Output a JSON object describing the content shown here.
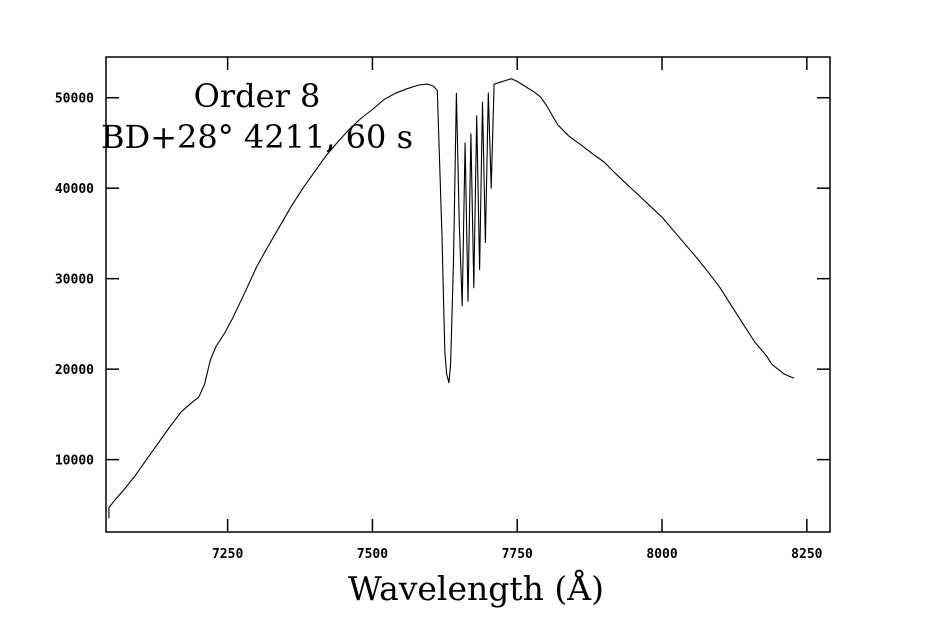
{
  "chart_data": {
    "type": "line",
    "title": "",
    "xlabel": "Wavelength (Å)",
    "ylabel": "",
    "xlim": [
      7040,
      8290
    ],
    "ylim": [
      2000,
      54500
    ],
    "x_ticks": [
      7250,
      7500,
      7750,
      8000,
      8250
    ],
    "y_ticks": [
      10000,
      20000,
      30000,
      40000,
      50000
    ],
    "grid": false,
    "annotations": [
      "Order 8",
      "BD+28° 4211, 60 s"
    ],
    "series": [
      {
        "x": [
          7045,
          7045,
          7055,
          7070,
          7090,
          7110,
          7130,
          7150,
          7170,
          7190,
          7200,
          7210,
          7220,
          7230,
          7245,
          7260,
          7280,
          7300,
          7320,
          7340,
          7360,
          7380,
          7400,
          7420,
          7440,
          7460,
          7480,
          7500,
          7520,
          7540,
          7560,
          7580,
          7595,
          7605,
          7612,
          7620,
          7625,
          7628,
          7632,
          7635,
          7640,
          7645,
          7650,
          7655,
          7660,
          7665,
          7670,
          7675,
          7680,
          7685,
          7690,
          7695,
          7700,
          7705,
          7710,
          7720,
          7730,
          7740,
          7750,
          7760,
          7770,
          7780,
          7790,
          7800,
          7820,
          7840,
          7860,
          7880,
          7900,
          7920,
          7940,
          7960,
          7980,
          8000,
          8020,
          8040,
          8060,
          8080,
          8100,
          8120,
          8140,
          8160,
          8180,
          8190,
          8200,
          8210,
          8220,
          8228
        ],
        "y": [
          3500,
          4700,
          5500,
          6600,
          8200,
          10000,
          11800,
          13600,
          15300,
          16400,
          16900,
          18300,
          21000,
          22500,
          24000,
          25800,
          28500,
          31300,
          33600,
          35800,
          38000,
          40000,
          41800,
          43600,
          45100,
          46500,
          47700,
          48700,
          49800,
          50500,
          51000,
          51400,
          51500,
          51300,
          50800,
          35000,
          22000,
          19500,
          18500,
          20500,
          32000,
          50500,
          36000,
          27000,
          45000,
          27500,
          46000,
          29000,
          48000,
          31000,
          49500,
          34000,
          50500,
          40000,
          51500,
          51700,
          51900,
          52100,
          51800,
          51400,
          51000,
          50600,
          50100,
          49200,
          47000,
          45700,
          44800,
          43800,
          42900,
          41600,
          40400,
          39200,
          38000,
          36800,
          35300,
          33800,
          32300,
          30700,
          29000,
          27000,
          25000,
          23000,
          21500,
          20500,
          20000,
          19500,
          19200,
          19000
        ]
      }
    ]
  }
}
